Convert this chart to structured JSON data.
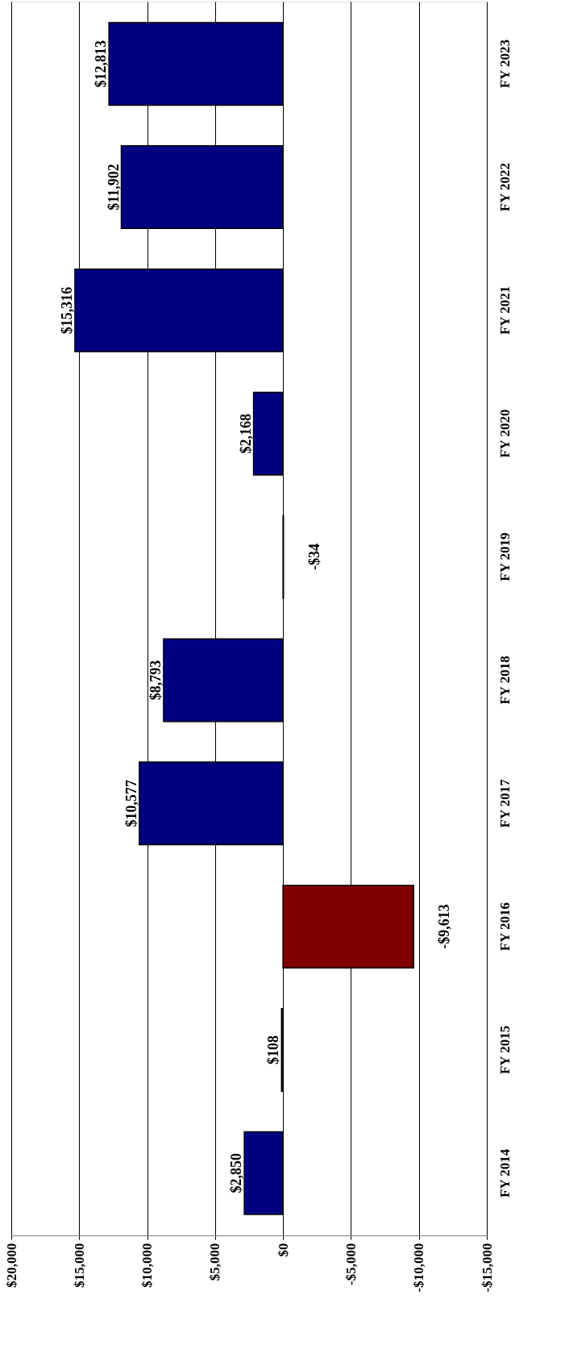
{
  "chart_data": {
    "type": "bar",
    "orientation": "horizontal",
    "categories": [
      "FY 2023",
      "FY 2022",
      "FY 2021",
      "FY 2020",
      "FY 2019",
      "FY 2018",
      "FY 2017",
      "FY 2016",
      "FY 2015",
      "FY 2014"
    ],
    "values": [
      12813,
      11902,
      15316,
      2168,
      -34,
      8793,
      10577,
      -9613,
      108,
      2850
    ],
    "colors": [
      "#000080",
      "#000080",
      "#000080",
      "#000080",
      "#000080",
      "#000080",
      "#000080",
      "#800000",
      "#000080",
      "#000080"
    ],
    "value_labels": [
      "$12,813",
      "$11,902",
      "$15,316",
      "$2,168",
      "-$34",
      "$8,793",
      "$10,577",
      "-$9,613",
      "$108",
      "$2,850"
    ],
    "xlim": [
      20000,
      -15000
    ],
    "xticks": [
      {
        "value": 20000,
        "label": "$20,000"
      },
      {
        "value": 15000,
        "label": "$15,000"
      },
      {
        "value": 10000,
        "label": "$10,000"
      },
      {
        "value": 5000,
        "label": "$5,000"
      },
      {
        "value": 0,
        "label": "$0"
      },
      {
        "value": -5000,
        "label": "-$5,000"
      },
      {
        "value": -10000,
        "label": "-$10,000"
      },
      {
        "value": -15000,
        "label": "-$15,000"
      }
    ],
    "grid": "x"
  }
}
